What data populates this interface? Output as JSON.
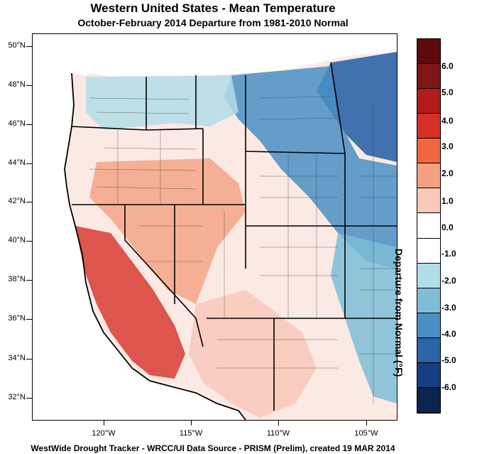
{
  "title": "Western United States - Mean Temperature",
  "subtitle": "October-February 2014  Departure from 1981-2010 Normal",
  "footer": "WestWide Drought Tracker - WRCC/UI  Data Source - PRISM (Prelim), created 19 MAR 2014",
  "colorbar": {
    "title": "Departure from Normal (°F)",
    "labels": [
      "6.0",
      "5.0",
      "4.0",
      "3.0",
      "2.0",
      "1.0",
      "0.0",
      "-1.0",
      "-2.0",
      "-3.0",
      "-4.0",
      "-5.0",
      "-6.0"
    ],
    "colors": [
      "#5e0a0a",
      "#801515",
      "#b31b1b",
      "#d73027",
      "#f0663f",
      "#f4a080",
      "#f8c8b8",
      "#ffffff",
      "#ffffff",
      "#b2dde8",
      "#7dbdd6",
      "#4a8fc4",
      "#2c64a8",
      "#173e80",
      "#0a2550"
    ]
  },
  "axes": {
    "lat_labels": [
      "50°N",
      "48°N",
      "46°N",
      "44°N",
      "42°N",
      "40°N",
      "38°N",
      "36°N",
      "34°N",
      "32°N"
    ],
    "lon_labels": [
      "120°W",
      "115°W",
      "110°W",
      "105°W"
    ]
  }
}
